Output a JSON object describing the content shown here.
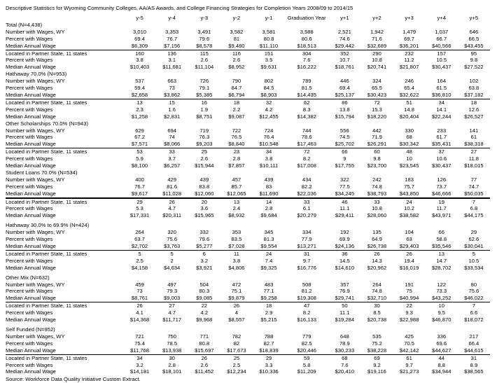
{
  "title": "Descriptive Statistics for Wyoming Community Colleges, AA/AS Awards, and College Financing Strategies for Completion Years 2008/09 to 2014/15",
  "source": "Source: Workforce Data Quality Initiative Custom Extract.",
  "table": {
    "columns": [
      "y-5",
      "y-4",
      "y-3",
      "y-2",
      "y-1",
      "Graduation Year",
      "y+1",
      "y+2",
      "y+3",
      "y+4",
      "y+5"
    ],
    "row_labels": [
      "Number with Wages, WY",
      "Percent with Wages",
      "Median Annual Wage",
      "Located in Partner State, 11 states",
      "Percent with Wages",
      "Median Annual Wage"
    ],
    "sections": [
      {
        "name": "Total (N=4,438)",
        "gap_before": false,
        "rows": [
          [
            "3,010",
            "3,353",
            "3,491",
            "3,582",
            "3,581",
            "3,588",
            "2,521",
            "1,942",
            "1,479",
            "1,037",
            "646"
          ],
          [
            "69.4",
            "76.7",
            "79.6",
            "81",
            "80.8",
            "80.6",
            "74.6",
            "71.6",
            "69.7",
            "66.7",
            "66.5"
          ],
          [
            "$6,309",
            "$7,156",
            "$8,578",
            "$9,480",
            "$11,110",
            "$18,513",
            "$29,442",
            "$32,689",
            "$36,201",
            "$40,566",
            "$43,455"
          ],
          [
            "160",
            "136",
            "115",
            "116",
            "151",
            "304",
            "352",
            "290",
            "232",
            "157",
            "95"
          ],
          [
            "3.8",
            "3.1",
            "2.6",
            "2.6",
            "3.5",
            "7.6",
            "10.7",
            "10.8",
            "11.2",
            "10.5",
            "9.8"
          ],
          [
            "$10,403",
            "$11,681",
            "$11,104",
            "$8,952",
            "$9,631",
            "$16,222",
            "$18,761",
            "$20,741",
            "$21,807",
            "$30,437",
            "$27,522"
          ]
        ]
      },
      {
        "name": "Hathaway 70.0% (N=953)",
        "gap_before": false,
        "rows": [
          [
            "537",
            "663",
            "726",
            "790",
            "802",
            "789",
            "446",
            "324",
            "246",
            "164",
            "102"
          ],
          [
            "59.4",
            "73",
            "79.1",
            "84.7",
            "84.5",
            "81.5",
            "69.4",
            "65.5",
            "65.4",
            "61.5",
            "63.8"
          ],
          [
            "$2,658",
            "$3,862",
            "$5,385",
            "$6,794",
            "$8,903",
            "$14,435",
            "$25,137",
            "$30,423",
            "$32,622",
            "$36,810",
            "$37,182"
          ],
          [
            "13",
            "15",
            "16",
            "18",
            "32",
            "62",
            "86",
            "72",
            "51",
            "34",
            "18"
          ],
          [
            "2.3",
            "1.6",
            "1.9",
            "2.2",
            "4.2",
            "8.3",
            "13.8",
            "15.3",
            "14.8",
            "14.1",
            "12.6"
          ],
          [
            "$1,258",
            "$2,831",
            "$8,751",
            "$9,087",
            "$12,455",
            "$14,382",
            "$15,794",
            "$18,220",
            "$20,404",
            "$22,244",
            "$26,527"
          ]
        ]
      },
      {
        "name": "Other Scholarships 70.0% (N=943)",
        "gap_before": false,
        "rows": [
          [
            "629",
            "694",
            "719",
            "722",
            "724",
            "744",
            "556",
            "442",
            "330",
            "233",
            "141"
          ],
          [
            "67.2",
            "74",
            "76.3",
            "76.5",
            "76.4",
            "78.6",
            "74.5",
            "71.9",
            "68",
            "61.7",
            "61"
          ],
          [
            "$7,571",
            "$8,066",
            "$9,203",
            "$8,840",
            "$10,548",
            "$17,463",
            "$25,702",
            "$26,291",
            "$30,342",
            "$35,431",
            "$38,318"
          ],
          [
            "53",
            "33",
            "25",
            "23",
            "34",
            "72",
            "66",
            "60",
            "48",
            "37",
            "27"
          ],
          [
            "5.9",
            "3.7",
            "2.6",
            "2.8",
            "3.8",
            "8.2",
            "9",
            "9.8",
            "10",
            "10.6",
            "11.8"
          ],
          [
            "$8,100",
            "$6,257",
            "$15,944",
            "$7,857",
            "$10,111",
            "$17,008",
            "$17,755",
            "$23,700",
            "$23,545",
            "$30,437",
            "$18,015"
          ]
        ]
      },
      {
        "name": "Student Loans 70.0% (N=534)",
        "gap_before": false,
        "rows": [
          [
            "400",
            "429",
            "439",
            "457",
            "439",
            "434",
            "322",
            "242",
            "183",
            "126",
            "77"
          ],
          [
            "76.7",
            "81.6",
            "83.8",
            "85.7",
            "83",
            "82.2",
            "77.5",
            "74.8",
            "75.7",
            "73.7",
            "74.7"
          ],
          [
            "$9,617",
            "$11,028",
            "$12,060",
            "$12,065",
            "$11,690",
            "$22,036",
            "$34,245",
            "$38,793",
            "$43,850",
            "$46,666",
            "$50,035"
          ],
          [
            "29",
            "26",
            "20",
            "13",
            "14",
            "33",
            "46",
            "33",
            "24",
            "19",
            "7"
          ],
          [
            "5.3",
            "4.7",
            "3.6",
            "2.4",
            "2.8",
            "6.1",
            "11.1",
            "10.8",
            "10.2",
            "11.7",
            "6.8"
          ],
          [
            "$17,331",
            "$20,311",
            "$15,965",
            "$8,932",
            "$9,684",
            "$20,279",
            "$29,411",
            "$28,060",
            "$38,582",
            "$43,971",
            "$44,175"
          ]
        ]
      },
      {
        "name": "Hathaway 30.0% to 69.9% (N=424)",
        "gap_before": true,
        "rows": [
          [
            "264",
            "320",
            "332",
            "353",
            "345",
            "334",
            "192",
            "135",
            "104",
            "66",
            "29"
          ],
          [
            "63.7",
            "75.6",
            "79.6",
            "83.5",
            "81.3",
            "77.9",
            "69.9",
            "64.9",
            "63",
            "58.8",
            "62.6"
          ],
          [
            "$2,702",
            "$3,763",
            "$5,277",
            "$7,028",
            "$9,554",
            "$13,271",
            "$24,136",
            "$26,738",
            "$29,403",
            "$35,546",
            "$30,041"
          ],
          [
            "5",
            "5",
            "6",
            "11",
            "24",
            "31",
            "36",
            "26",
            "26",
            "13",
            "5"
          ],
          [
            "2.5",
            "2",
            "3.2",
            "3.8",
            "7.4",
            "9.7",
            "14.5",
            "14.3",
            "19.4",
            "14.7",
            "10.5"
          ],
          [
            "$4,158",
            "$4,634",
            "$3,921",
            "$4,806",
            "$9,325",
            "$16,776",
            "$14,610",
            "$20,962",
            "$16,019",
            "$28,702",
            "$33,534"
          ]
        ]
      },
      {
        "name": "Other Mix (N=632)",
        "gap_before": true,
        "rows": [
          [
            "459",
            "497",
            "504",
            "472",
            "483",
            "508",
            "357",
            "264",
            "191",
            "122",
            "80"
          ],
          [
            "73",
            "79.3",
            "80.3",
            "75.1",
            "77.1",
            "81.2",
            "76.9",
            "74.8",
            "75",
            "73.3",
            "75.6"
          ],
          [
            "$8,761",
            "$9,003",
            "$9,085",
            "$9,879",
            "$9,258",
            "$19,308",
            "$29,741",
            "$32,710",
            "$40,994",
            "$43,252",
            "$46,022"
          ],
          [
            "26",
            "27",
            "22",
            "26",
            "18",
            "47",
            "50",
            "30",
            "22",
            "10",
            "7"
          ],
          [
            "4.1",
            "4.7",
            "4.2",
            "4",
            "2.9",
            "8.2",
            "11.1",
            "8.5",
            "9.3",
            "9.5",
            "6.6"
          ],
          [
            "$14,368",
            "$11,717",
            "$9,968",
            "$8,557",
            "$5,215",
            "$16,133",
            "$19,284",
            "$20,738",
            "$22,988",
            "$46,870",
            "$18,072"
          ]
        ]
      },
      {
        "name": "Self Funded (N=952)",
        "gap_before": true,
        "rows": [
          [
            "721",
            "750",
            "771",
            "782",
            "788",
            "779",
            "648",
            "535",
            "425",
            "336",
            "217"
          ],
          [
            "75.4",
            "78.5",
            "80.8",
            "82",
            "82.7",
            "82.5",
            "78.9",
            "75.2",
            "70.5",
            "69.6",
            "66.4"
          ],
          [
            "$11,768",
            "$13,938",
            "$15,697",
            "$17,673",
            "$18,839",
            "$20,446",
            "$30,233",
            "$38,228",
            "$42,142",
            "$44,627",
            "$44,615"
          ],
          [
            "34",
            "30",
            "26",
            "25",
            "29",
            "59",
            "68",
            "69",
            "61",
            "44",
            "31"
          ],
          [
            "3.2",
            "2.8",
            "2.6",
            "2.5",
            "3.3",
            "5.8",
            "7.6",
            "9.2",
            "9.7",
            "8.8",
            "8.9"
          ],
          [
            "$14,181",
            "$18,101",
            "$11,452",
            "$12,234",
            "$10,336",
            "$11,209",
            "$20,410",
            "$19,116",
            "$21,273",
            "$34,944",
            "$38,565"
          ]
        ]
      }
    ]
  }
}
